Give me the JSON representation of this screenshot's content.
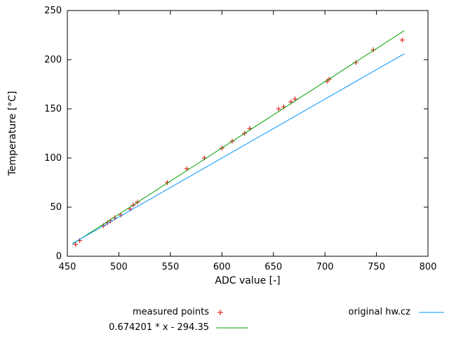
{
  "chart_data": {
    "type": "scatter",
    "title": "",
    "xlabel": "ADC value [-]",
    "ylabel": "Temperature [°C]",
    "xlim": [
      450,
      800
    ],
    "ylim": [
      0,
      250
    ],
    "xticks": [
      450,
      500,
      550,
      600,
      650,
      700,
      750,
      800
    ],
    "yticks": [
      0,
      50,
      100,
      150,
      200,
      250
    ],
    "grid": false,
    "legend_position": "below-plot",
    "frame_color": "#000000",
    "background_color": "#ffffff",
    "series": [
      {
        "name": "measured points",
        "style": "points",
        "marker": "plus",
        "color": "#dd0000",
        "points": [
          [
            458,
            12
          ],
          [
            462,
            16
          ],
          [
            485,
            31
          ],
          [
            489,
            34
          ],
          [
            492,
            36
          ],
          [
            496,
            39
          ],
          [
            502,
            42
          ],
          [
            511,
            48
          ],
          [
            514,
            52
          ],
          [
            518,
            55
          ],
          [
            547,
            75
          ],
          [
            566,
            89
          ],
          [
            583,
            100
          ],
          [
            600,
            110
          ],
          [
            610,
            117
          ],
          [
            622,
            125
          ],
          [
            627,
            130
          ],
          [
            655,
            150
          ],
          [
            660,
            152
          ],
          [
            667,
            157
          ],
          [
            671,
            160
          ],
          [
            702,
            178
          ],
          [
            704,
            180
          ],
          [
            730,
            197
          ],
          [
            747,
            210
          ],
          [
            775,
            220
          ]
        ]
      },
      {
        "name": "0.674201 * x - 294.35",
        "style": "line",
        "color": "#00a000",
        "slope": 0.674201,
        "intercept": -294.35,
        "points": [
          [
            455,
            12.41
          ],
          [
            777,
            229.5
          ]
        ]
      },
      {
        "name": "original hw.cz",
        "style": "line",
        "color": "#0094ff",
        "points": [
          [
            455,
            13
          ],
          [
            777,
            206
          ]
        ]
      }
    ]
  }
}
